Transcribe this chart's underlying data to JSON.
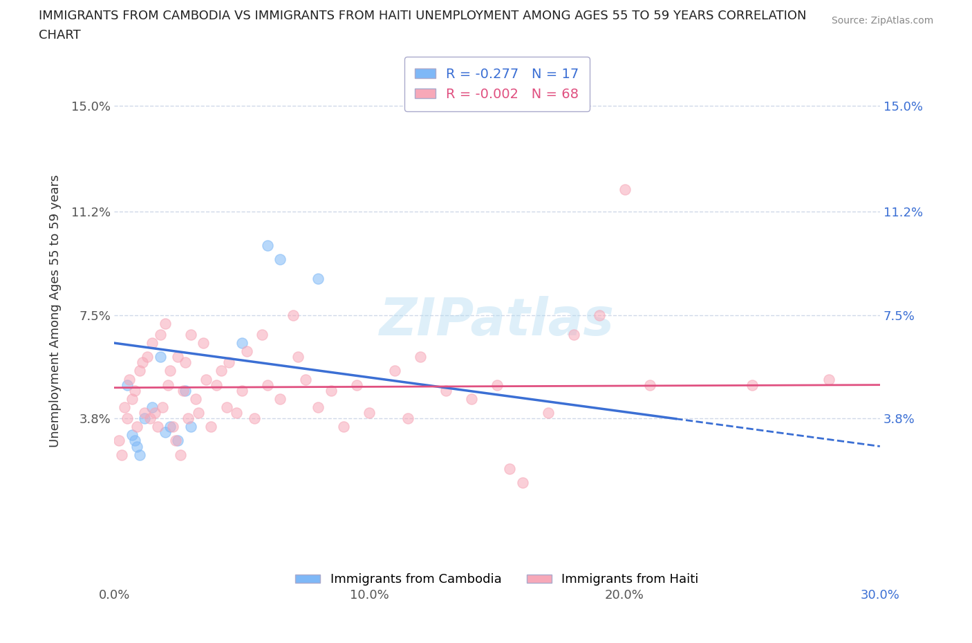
{
  "title_line1": "IMMIGRANTS FROM CAMBODIA VS IMMIGRANTS FROM HAITI UNEMPLOYMENT AMONG AGES 55 TO 59 YEARS CORRELATION",
  "title_line2": "CHART",
  "source": "Source: ZipAtlas.com",
  "ylabel": "Unemployment Among Ages 55 to 59 years",
  "xlim": [
    0,
    0.3
  ],
  "ylim": [
    -0.015,
    0.168
  ],
  "yticks": [
    0.0,
    0.038,
    0.075,
    0.112,
    0.15
  ],
  "ytick_labels": [
    "",
    "3.8%",
    "7.5%",
    "11.2%",
    "15.0%"
  ],
  "xticks": [
    0.0,
    0.1,
    0.2,
    0.3
  ],
  "xtick_labels": [
    "0.0%",
    "10.0%",
    "20.0%",
    "30.0%"
  ],
  "cambodia_color": "#7eb8f7",
  "haiti_color": "#f7a8b8",
  "cambodia_line_color": "#3b6fd4",
  "haiti_line_color": "#e05080",
  "legend_cambodia": "R = -0.277   N = 17",
  "legend_haiti": "R = -0.002   N = 68",
  "legend_bottom_cambodia": "Immigrants from Cambodia",
  "legend_bottom_haiti": "Immigrants from Haiti",
  "cambodia_scatter": [
    [
      0.005,
      0.05
    ],
    [
      0.007,
      0.032
    ],
    [
      0.008,
      0.03
    ],
    [
      0.009,
      0.028
    ],
    [
      0.01,
      0.025
    ],
    [
      0.012,
      0.038
    ],
    [
      0.015,
      0.042
    ],
    [
      0.018,
      0.06
    ],
    [
      0.02,
      0.033
    ],
    [
      0.022,
      0.035
    ],
    [
      0.025,
      0.03
    ],
    [
      0.028,
      0.048
    ],
    [
      0.03,
      0.035
    ],
    [
      0.05,
      0.065
    ],
    [
      0.06,
      0.1
    ],
    [
      0.065,
      0.095
    ],
    [
      0.08,
      0.088
    ]
  ],
  "haiti_scatter": [
    [
      0.002,
      0.03
    ],
    [
      0.003,
      0.025
    ],
    [
      0.004,
      0.042
    ],
    [
      0.005,
      0.038
    ],
    [
      0.006,
      0.052
    ],
    [
      0.007,
      0.045
    ],
    [
      0.008,
      0.048
    ],
    [
      0.009,
      0.035
    ],
    [
      0.01,
      0.055
    ],
    [
      0.011,
      0.058
    ],
    [
      0.012,
      0.04
    ],
    [
      0.013,
      0.06
    ],
    [
      0.014,
      0.038
    ],
    [
      0.015,
      0.065
    ],
    [
      0.016,
      0.04
    ],
    [
      0.017,
      0.035
    ],
    [
      0.018,
      0.068
    ],
    [
      0.019,
      0.042
    ],
    [
      0.02,
      0.072
    ],
    [
      0.021,
      0.05
    ],
    [
      0.022,
      0.055
    ],
    [
      0.023,
      0.035
    ],
    [
      0.024,
      0.03
    ],
    [
      0.025,
      0.06
    ],
    [
      0.026,
      0.025
    ],
    [
      0.027,
      0.048
    ],
    [
      0.028,
      0.058
    ],
    [
      0.029,
      0.038
    ],
    [
      0.03,
      0.068
    ],
    [
      0.032,
      0.045
    ],
    [
      0.033,
      0.04
    ],
    [
      0.035,
      0.065
    ],
    [
      0.036,
      0.052
    ],
    [
      0.038,
      0.035
    ],
    [
      0.04,
      0.05
    ],
    [
      0.042,
      0.055
    ],
    [
      0.044,
      0.042
    ],
    [
      0.045,
      0.058
    ],
    [
      0.048,
      0.04
    ],
    [
      0.05,
      0.048
    ],
    [
      0.052,
      0.062
    ],
    [
      0.055,
      0.038
    ],
    [
      0.058,
      0.068
    ],
    [
      0.06,
      0.05
    ],
    [
      0.065,
      0.045
    ],
    [
      0.07,
      0.075
    ],
    [
      0.072,
      0.06
    ],
    [
      0.075,
      0.052
    ],
    [
      0.08,
      0.042
    ],
    [
      0.085,
      0.048
    ],
    [
      0.09,
      0.035
    ],
    [
      0.095,
      0.05
    ],
    [
      0.1,
      0.04
    ],
    [
      0.11,
      0.055
    ],
    [
      0.115,
      0.038
    ],
    [
      0.12,
      0.06
    ],
    [
      0.13,
      0.048
    ],
    [
      0.14,
      0.045
    ],
    [
      0.15,
      0.05
    ],
    [
      0.155,
      0.02
    ],
    [
      0.16,
      0.015
    ],
    [
      0.17,
      0.04
    ],
    [
      0.18,
      0.068
    ],
    [
      0.19,
      0.075
    ],
    [
      0.2,
      0.12
    ],
    [
      0.21,
      0.05
    ],
    [
      0.25,
      0.05
    ],
    [
      0.28,
      0.052
    ]
  ],
  "cambodia_trend": {
    "x_start": 0.0,
    "y_start": 0.065,
    "x_end": 0.3,
    "y_end": 0.028
  },
  "cambodia_trend_solid_end": 0.22,
  "haiti_trend": {
    "x_start": 0.0,
    "y_start": 0.049,
    "x_end": 0.3,
    "y_end": 0.05
  },
  "background_color": "#ffffff",
  "grid_color": "#d0d8e8",
  "scatter_size": 120,
  "scatter_alpha": 0.55
}
